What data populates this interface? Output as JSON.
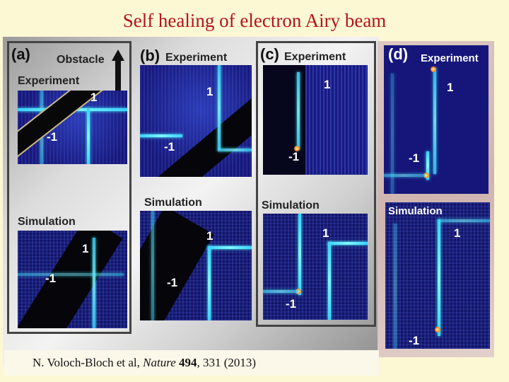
{
  "slide": {
    "title": "Self healing of electron Airy beam"
  },
  "panels": {
    "a": {
      "letter": "(a)",
      "obstacle_label": "Obstacle",
      "experiment_label": "Experiment",
      "simulation_label": "Simulation",
      "mark_pos": "1",
      "mark_neg": "-1",
      "mark_pos_sim": "1",
      "mark_neg_sim": "-1"
    },
    "b": {
      "letter": "(b)",
      "experiment_label": "Experiment",
      "simulation_label": "Simulation",
      "mark_pos": "1",
      "mark_neg": "-1",
      "mark_pos_sim": "1",
      "mark_neg_sim": "-1"
    },
    "c": {
      "letter": "(c)",
      "experiment_label": "Experiment",
      "simulation_label": "Simulation",
      "mark_pos": "1",
      "mark_neg": "-1",
      "mark_pos_sim": "1",
      "mark_neg_sim": "-1"
    },
    "d": {
      "letter": "(d)",
      "experiment_label": "Experiment",
      "simulation_label": "Simulation",
      "mark_pos": "1",
      "mark_neg": "-1",
      "mark_pos_sim": "1",
      "mark_neg_sim": "-1"
    }
  },
  "citation": {
    "authors": "N. Voloch-Bloch et al, ",
    "journal": "Nature",
    "volume": "494",
    "rest": ", 331 (2013)"
  },
  "colors": {
    "title": "#b3131b",
    "background": "#fdf8d4",
    "beam": "#7ff7ff",
    "plot_bg": "#18187a"
  }
}
